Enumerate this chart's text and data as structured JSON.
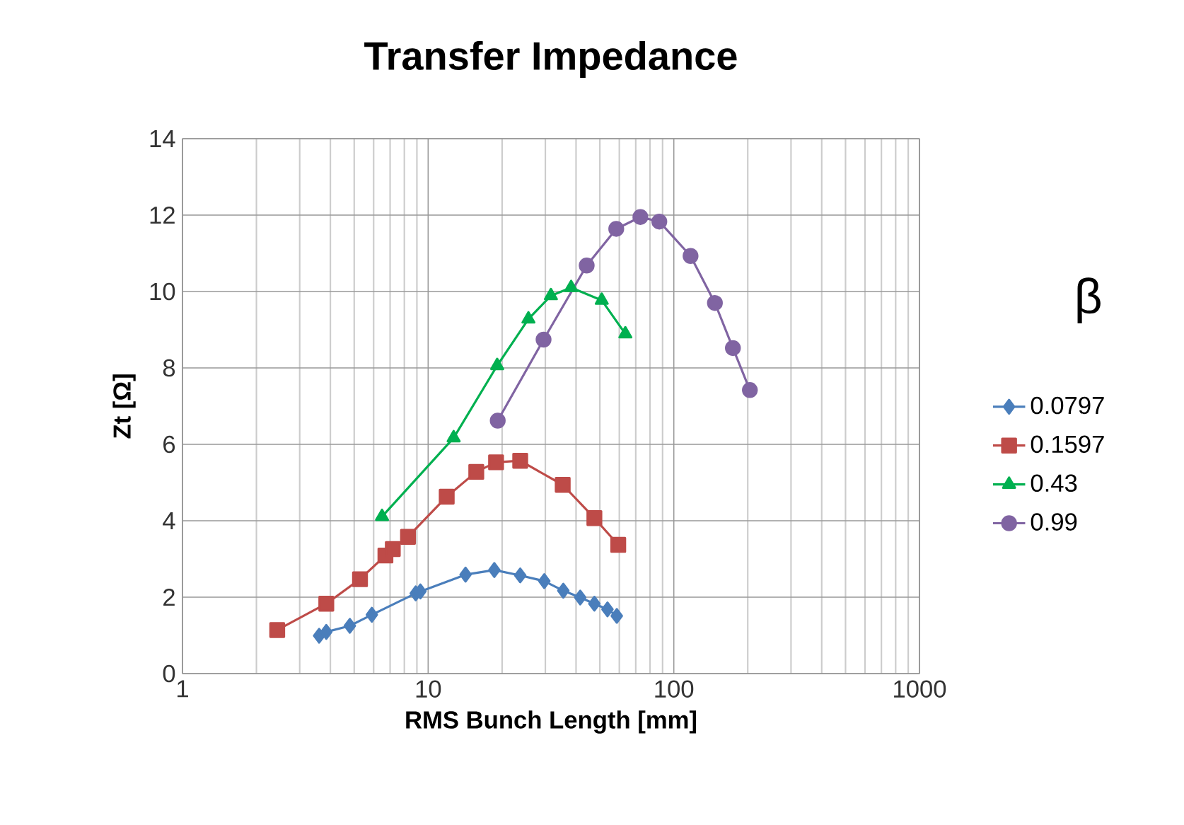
{
  "chart_data": {
    "type": "line",
    "title": "Transfer Impedance",
    "xlabel": "RMS Bunch Length [mm]",
    "ylabel": "Zt [Ω]",
    "legend_title": "β",
    "log": "x",
    "xlim": [
      1,
      1000
    ],
    "xticks": [
      1,
      10,
      100,
      1000
    ],
    "ylim": [
      0,
      14
    ],
    "yticks": [
      0,
      2,
      4,
      6,
      8,
      10,
      12,
      14
    ],
    "grid": true,
    "legend": "right",
    "series": [
      {
        "name": "0.0797",
        "color": "#4a7ebb",
        "marker": "diamond",
        "x": [
          3.6,
          3.85,
          4.8,
          5.9,
          8.9,
          9.3,
          14.2,
          18.6,
          23.7,
          29.7,
          35.5,
          41.6,
          47.5,
          53.7,
          58.6
        ],
        "values": [
          0.99,
          1.09,
          1.25,
          1.54,
          2.1,
          2.15,
          2.59,
          2.71,
          2.57,
          2.42,
          2.17,
          1.99,
          1.83,
          1.68,
          1.51
        ]
      },
      {
        "name": "0.1597",
        "color": "#be4b48",
        "marker": "square",
        "x": [
          2.43,
          3.85,
          5.28,
          6.7,
          7.18,
          8.28,
          11.9,
          15.7,
          18.9,
          23.7,
          35.3,
          47.5,
          59.4
        ],
        "values": [
          1.14,
          1.83,
          2.47,
          3.09,
          3.26,
          3.58,
          4.63,
          5.28,
          5.53,
          5.57,
          4.94,
          4.07,
          3.37
        ]
      },
      {
        "name": "0.43",
        "color": "#00b050",
        "marker": "triangle",
        "x": [
          6.49,
          12.7,
          19.1,
          25.6,
          31.6,
          38.2,
          50.9,
          63.5
        ],
        "values": [
          4.11,
          6.17,
          8.06,
          9.28,
          9.89,
          10.1,
          9.77,
          8.89
        ]
      },
      {
        "name": "0.99",
        "color": "#8064a2",
        "marker": "circle",
        "x": [
          19.2,
          29.5,
          44.2,
          58.3,
          73.1,
          87.3,
          117,
          147,
          174,
          204
        ],
        "values": [
          6.62,
          8.74,
          10.68,
          11.64,
          11.95,
          11.83,
          10.93,
          9.7,
          8.52,
          7.42
        ]
      }
    ]
  }
}
